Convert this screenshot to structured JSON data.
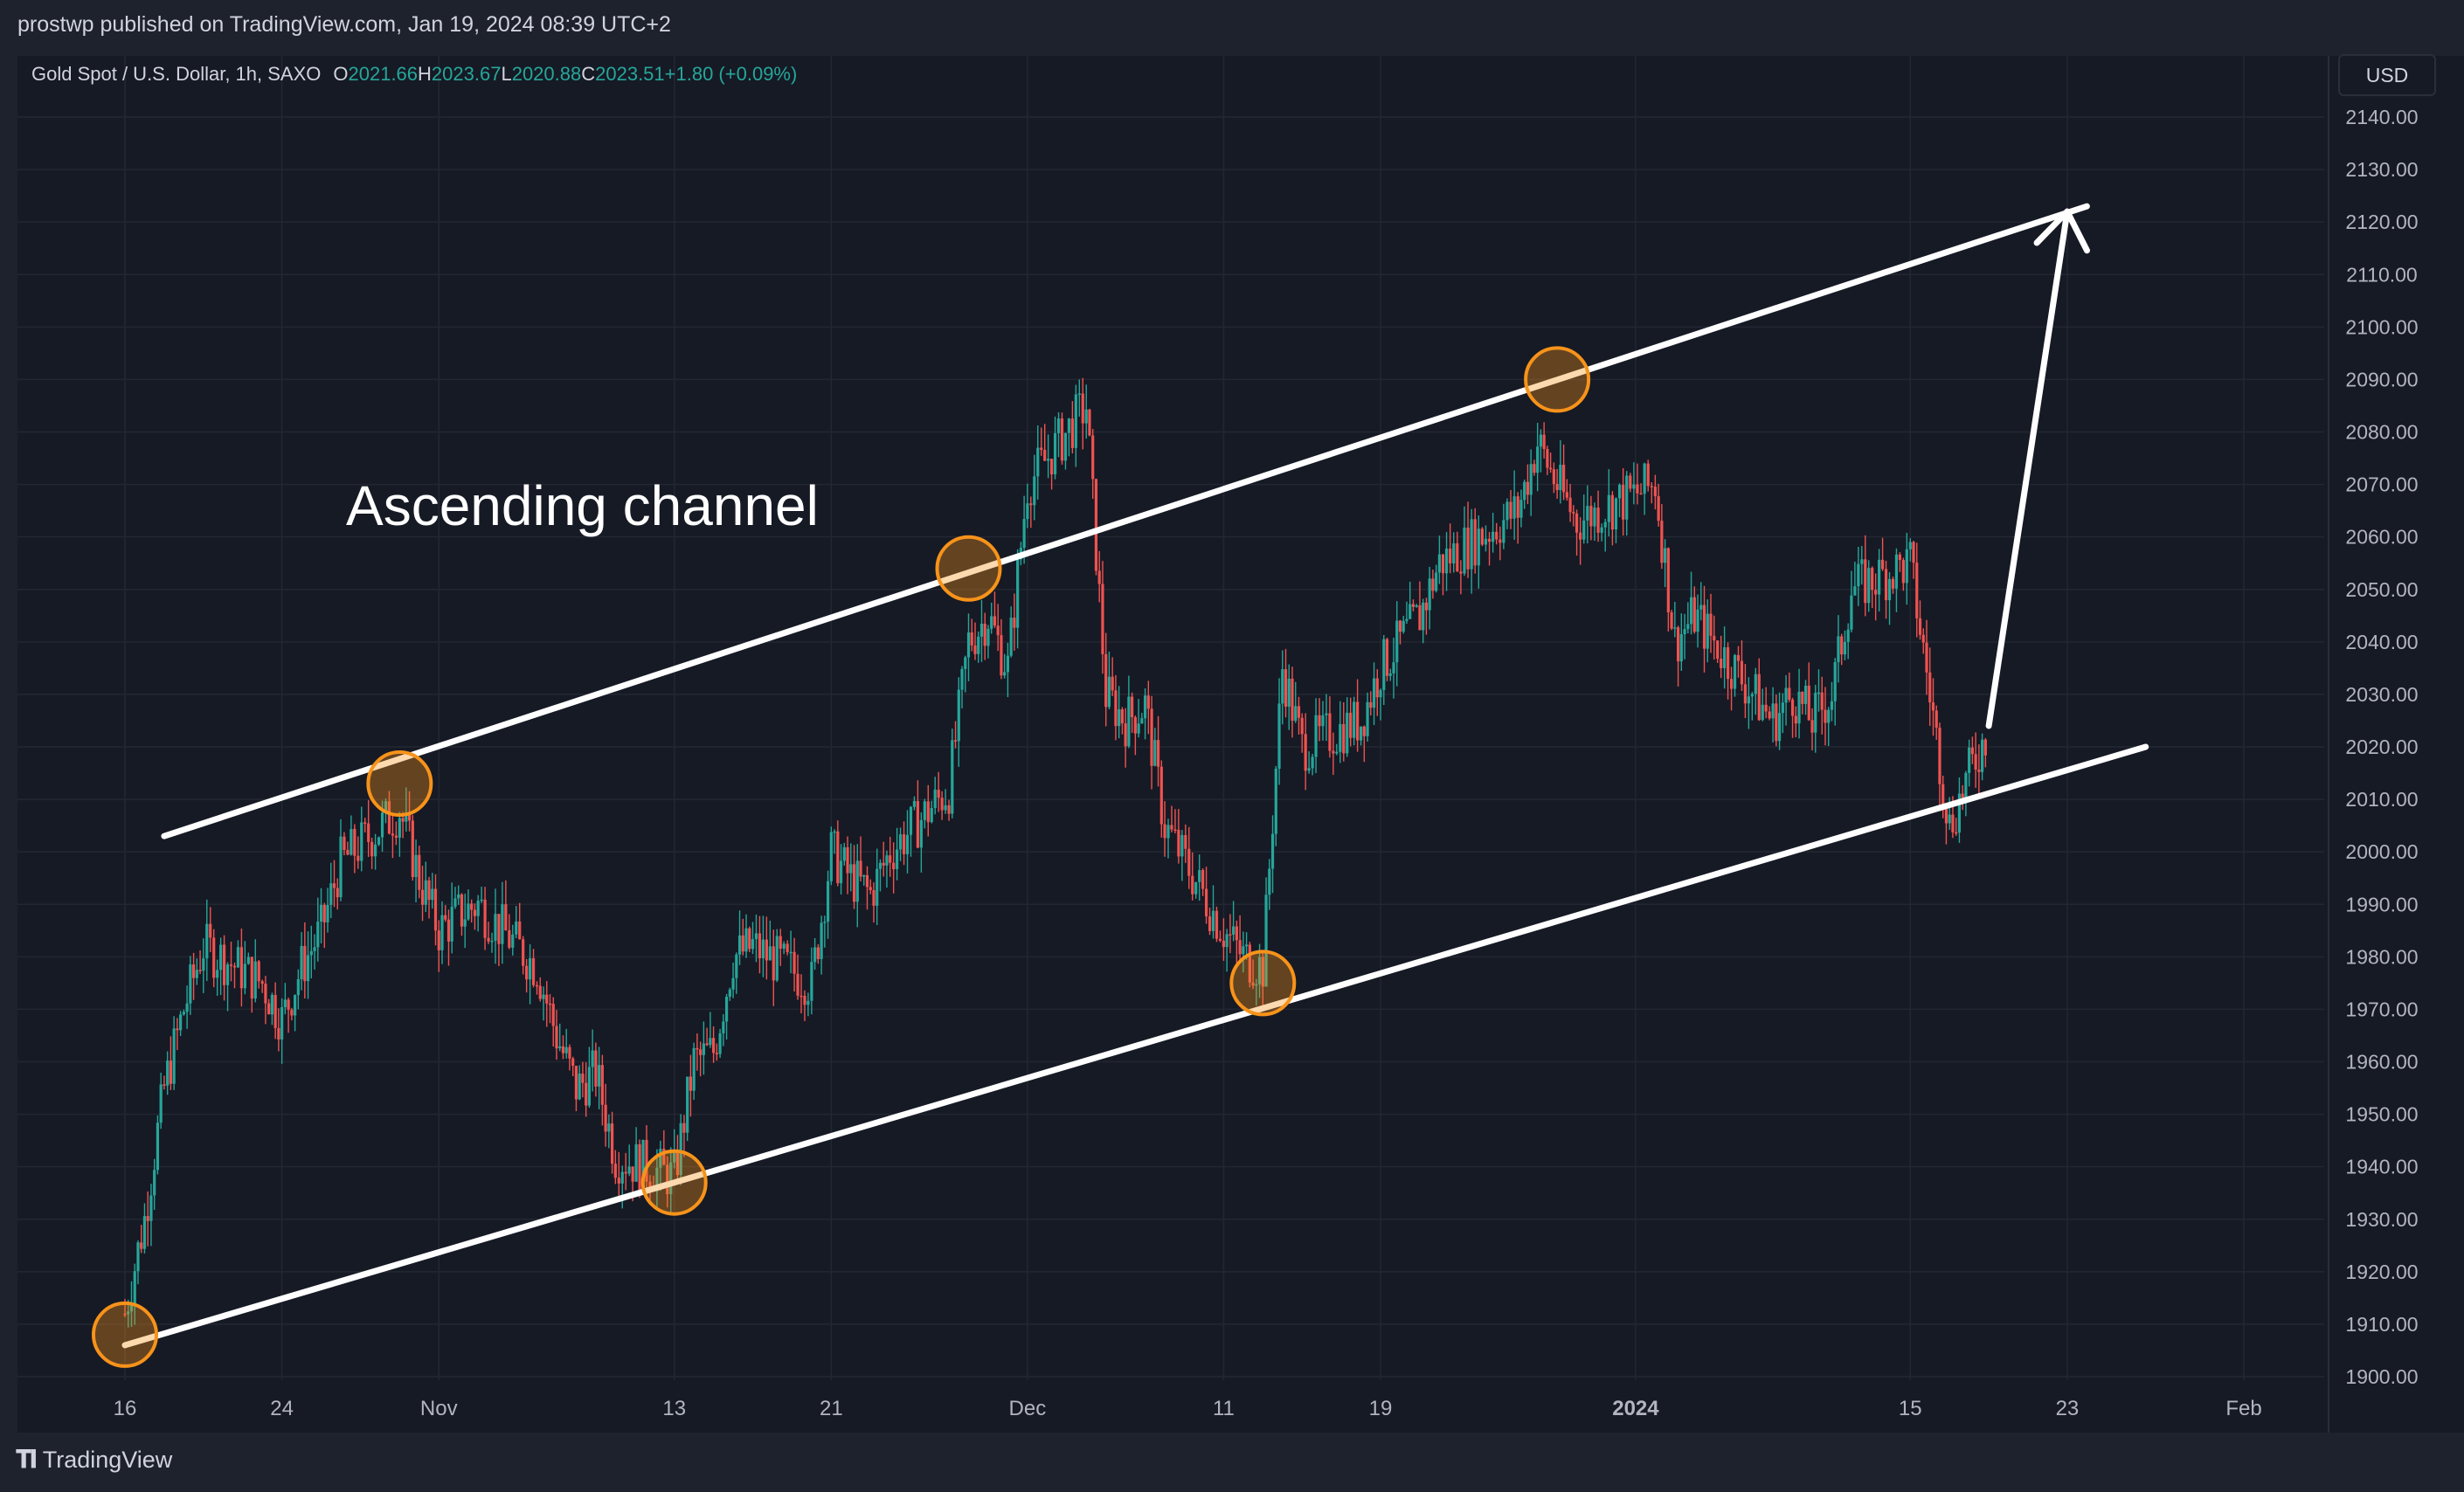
{
  "header": {
    "published_text": "prostwp published on TradingView.com, Jan 19, 2024 08:39 UTC+2"
  },
  "legend": {
    "symbol": "Gold Spot / U.S. Dollar, 1h, SAXO",
    "open_label": "O",
    "open": "2021.66",
    "high_label": "H",
    "high": "2023.67",
    "low_label": "L",
    "low": "2020.88",
    "close_label": "C",
    "close": "2023.51",
    "change": "+1.80 (+0.09%)"
  },
  "currency_button": "USD",
  "footer": {
    "brand": "TradingView"
  },
  "colors": {
    "up": "#26a69a",
    "down": "#ef5350",
    "channel": "#ffffff",
    "marker": "#f7931a",
    "background": "#161a25",
    "grid": "#232732"
  },
  "chart_data": {
    "type": "candlestick",
    "symbol": "XAUUSD",
    "timeframe": "1h",
    "ylim": [
      1900,
      2140
    ],
    "y_ticks": [
      "2140.00",
      "2130.00",
      "2120.00",
      "2110.00",
      "2100.00",
      "2090.00",
      "2080.00",
      "2070.00",
      "2060.00",
      "2050.00",
      "2040.00",
      "2030.00",
      "2020.00",
      "2010.00",
      "2000.00",
      "1990.00",
      "1980.00",
      "1970.00",
      "1960.00",
      "1950.00",
      "1940.00",
      "1930.00",
      "1920.00",
      "1910.00",
      "1900.00"
    ],
    "x_ticks": [
      "16",
      "24",
      "Nov",
      "13",
      "21",
      "Dec",
      "11",
      "19",
      "2024",
      "15",
      "23",
      "Feb"
    ],
    "x_tick_dates": [
      "2023-10-16",
      "2023-10-24",
      "2023-11-01",
      "2023-11-13",
      "2023-11-21",
      "2023-12-01",
      "2023-12-11",
      "2023-12-19",
      "2024-01-01",
      "2024-01-15",
      "2024-01-23",
      "2024-02-01"
    ],
    "series": [
      {
        "type": "price",
        "points": [
          [
            "2023-10-16",
            1912
          ],
          [
            "2023-10-17",
            1930
          ],
          [
            "2023-10-18",
            1955
          ],
          [
            "2023-10-19",
            1970
          ],
          [
            "2023-10-20",
            1982
          ],
          [
            "2023-10-23",
            1975
          ],
          [
            "2023-10-24",
            1968
          ],
          [
            "2023-10-25",
            1978
          ],
          [
            "2023-10-26",
            1985
          ],
          [
            "2023-10-27",
            1998
          ],
          [
            "2023-10-30",
            2008
          ],
          [
            "2023-10-31",
            1995
          ],
          [
            "2023-11-01",
            1985
          ],
          [
            "2023-11-02",
            1988
          ],
          [
            "2023-11-03",
            1990
          ],
          [
            "2023-11-06",
            1978
          ],
          [
            "2023-11-07",
            1965
          ],
          [
            "2023-11-08",
            1955
          ],
          [
            "2023-11-09",
            1958
          ],
          [
            "2023-11-10",
            1942
          ],
          [
            "2023-11-13",
            1938
          ],
          [
            "2023-11-14",
            1960
          ],
          [
            "2023-11-15",
            1962
          ],
          [
            "2023-11-16",
            1980
          ],
          [
            "2023-11-17",
            1982
          ],
          [
            "2023-11-20",
            1975
          ],
          [
            "2023-11-21",
            2000
          ],
          [
            "2023-11-22",
            1995
          ],
          [
            "2023-11-23",
            1992
          ],
          [
            "2023-11-24",
            2000
          ],
          [
            "2023-11-27",
            2012
          ],
          [
            "2023-11-28",
            2040
          ],
          [
            "2023-11-29",
            2045
          ],
          [
            "2023-11-30",
            2035
          ],
          [
            "2023-12-01",
            2070
          ],
          [
            "2023-12-04",
            2085
          ],
          [
            "2023-12-05",
            2030
          ],
          [
            "2023-12-06",
            2025
          ],
          [
            "2023-12-07",
            2028
          ],
          [
            "2023-12-08",
            2005
          ],
          [
            "2023-12-11",
            1985
          ],
          [
            "2023-12-12",
            1980
          ],
          [
            "2023-12-13",
            1978
          ],
          [
            "2023-12-14",
            2035
          ],
          [
            "2023-12-15",
            2020
          ],
          [
            "2023-12-18",
            2025
          ],
          [
            "2023-12-19",
            2035
          ],
          [
            "2023-12-20",
            2040
          ],
          [
            "2023-12-21",
            2045
          ],
          [
            "2023-12-22",
            2055
          ],
          [
            "2023-12-26",
            2065
          ],
          [
            "2023-12-27",
            2078
          ],
          [
            "2023-12-28",
            2070
          ],
          [
            "2023-12-29",
            2063
          ],
          [
            "2024-01-02",
            2070
          ],
          [
            "2024-01-03",
            2040
          ],
          [
            "2024-01-04",
            2045
          ],
          [
            "2024-01-05",
            2040
          ],
          [
            "2024-01-08",
            2025
          ],
          [
            "2024-01-09",
            2030
          ],
          [
            "2024-01-10",
            2025
          ],
          [
            "2024-01-11",
            2030
          ],
          [
            "2024-01-12",
            2050
          ],
          [
            "2024-01-15",
            2055
          ],
          [
            "2024-01-16",
            2030
          ],
          [
            "2024-01-17",
            2005
          ],
          [
            "2024-01-18",
            2015
          ],
          [
            "2024-01-19",
            2023.51
          ]
        ]
      }
    ],
    "annotations": {
      "text": "Ascending channel",
      "channel_upper": [
        [
          "2023-10-18",
          2003
        ],
        [
          "2024-01-24",
          2123
        ]
      ],
      "channel_lower": [
        [
          "2023-10-16",
          1906
        ],
        [
          "2024-01-27",
          2020
        ]
      ],
      "touch_points": [
        [
          "2023-10-16",
          1908
        ],
        [
          "2023-10-30",
          2013
        ],
        [
          "2023-11-13",
          1937
        ],
        [
          "2023-11-28",
          2054
        ],
        [
          "2023-12-13",
          1975
        ],
        [
          "2023-12-28",
          2090
        ]
      ],
      "arrow": [
        [
          "2024-01-19",
          2024
        ],
        [
          "2024-01-23",
          2122
        ]
      ]
    },
    "grid": true
  }
}
